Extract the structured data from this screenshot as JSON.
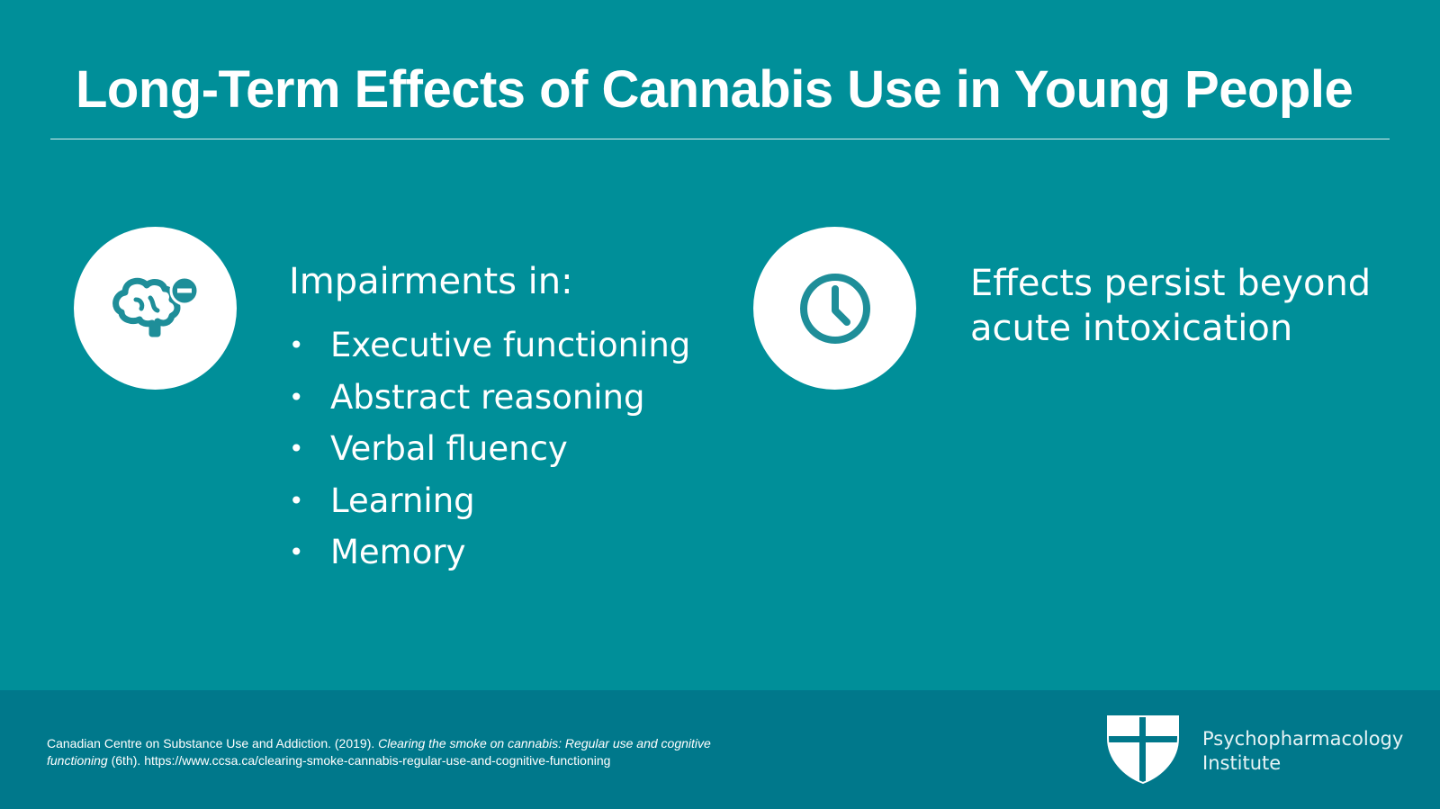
{
  "title": "Long-Term Effects of Cannabis Use in Young People",
  "left_panel": {
    "icon": "brain-minus-icon",
    "heading": "Impairments in:",
    "items": [
      "Executive functioning",
      "Abstract reasoning",
      "Verbal fluency",
      "Learning",
      "Memory"
    ]
  },
  "right_panel": {
    "icon": "clock-icon",
    "text": "Effects persist beyond acute intoxication"
  },
  "footer": {
    "citation": {
      "authors": "Canadian Centre on Substance Use and Addiction. (2019).",
      "title_italic": "Clearing the smoke on cannabis: Regular use and cognitive functioning",
      "edition": "(6th).",
      "url": "https://www.ccsa.ca/clearing-smoke-cannabis-regular-use-and-cognitive-functioning"
    },
    "logo": {
      "icon": "shield-logo-icon",
      "line1": "Psychopharmacology",
      "line2": "Institute"
    }
  },
  "colors": {
    "background": "#008f99",
    "footer": "#00788b",
    "icon": "#1e8e99",
    "text": "#ffffff"
  }
}
